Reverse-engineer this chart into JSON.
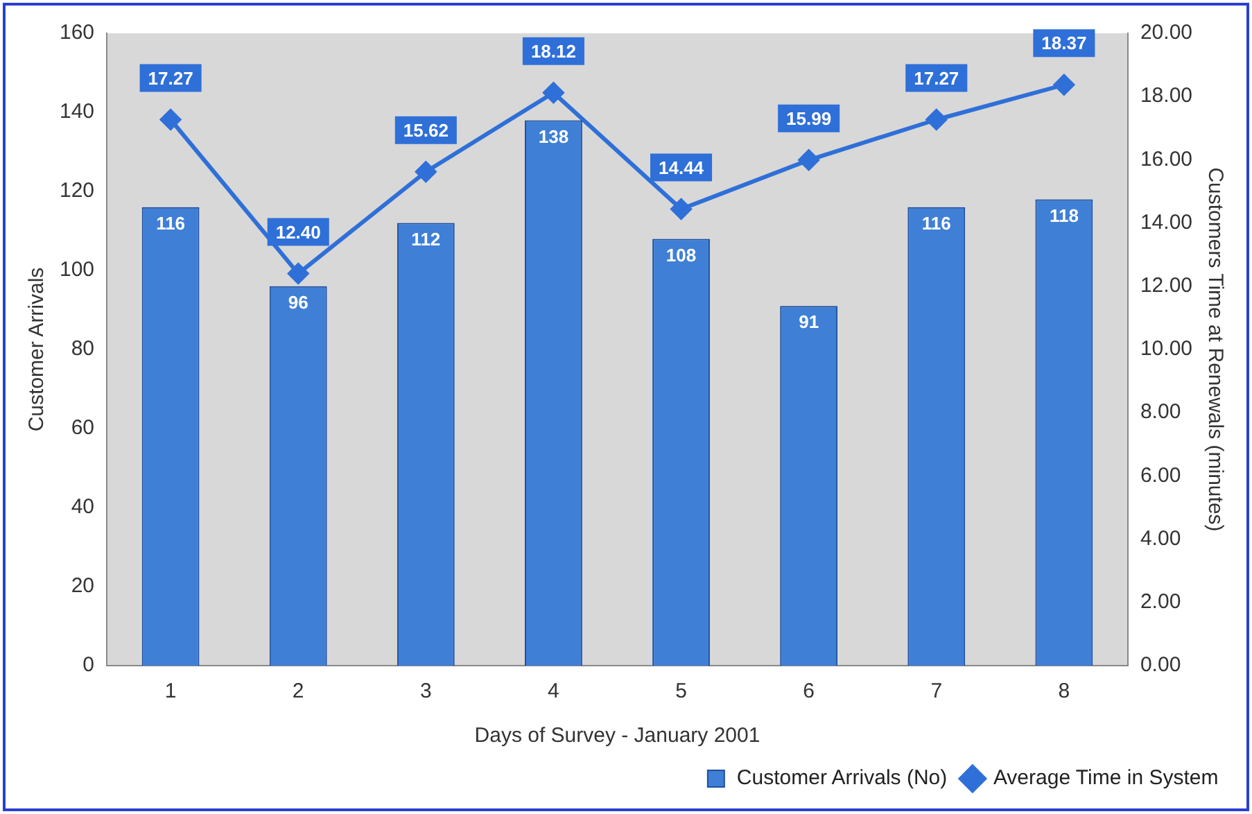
{
  "chart_data": {
    "type": "bar",
    "xlabel": "Days of Survey - January 2001",
    "ylabel": "Customer Arrivals",
    "y2label": "Customers Time at Renewals (minutes)",
    "categories": [
      "1",
      "2",
      "3",
      "4",
      "5",
      "6",
      "7",
      "8"
    ],
    "series": [
      {
        "name": "Customer Arrivals (No)",
        "color": "#3f7fd6",
        "values": [
          116,
          96,
          112,
          138,
          108,
          91,
          116,
          118
        ],
        "value_labels": [
          "116",
          "96",
          "112",
          "138",
          "108",
          "91",
          "116",
          "118"
        ]
      },
      {
        "name": "Average Time in System",
        "type": "line",
        "axis": "y2",
        "color": "#2f6fd8",
        "marker": "diamond",
        "values": [
          17.27,
          12.4,
          15.62,
          18.12,
          14.44,
          15.99,
          17.27,
          18.37
        ],
        "value_labels": [
          "17.27",
          "12.40",
          "15.62",
          "18.12",
          "14.44",
          "15.99",
          "17.27",
          "18.37"
        ]
      }
    ],
    "ylim": [
      0,
      160
    ],
    "yticks": [
      0,
      20,
      40,
      60,
      80,
      100,
      120,
      140,
      160
    ],
    "y2lim": [
      0,
      20
    ],
    "y2ticks": [
      {
        "value": 0,
        "label": "0.00"
      },
      {
        "value": 2,
        "label": "2.00"
      },
      {
        "value": 4,
        "label": "4.00"
      },
      {
        "value": 6,
        "label": "6.00"
      },
      {
        "value": 8,
        "label": "8.00"
      },
      {
        "value": 10,
        "label": "10.00"
      },
      {
        "value": 12,
        "label": "12.00"
      },
      {
        "value": 14,
        "label": "14.00"
      },
      {
        "value": 16,
        "label": "16.00"
      },
      {
        "value": 18,
        "label": "18.00"
      },
      {
        "value": 20,
        "label": "20.00"
      }
    ],
    "grid": false,
    "legend": "bottom right"
  }
}
